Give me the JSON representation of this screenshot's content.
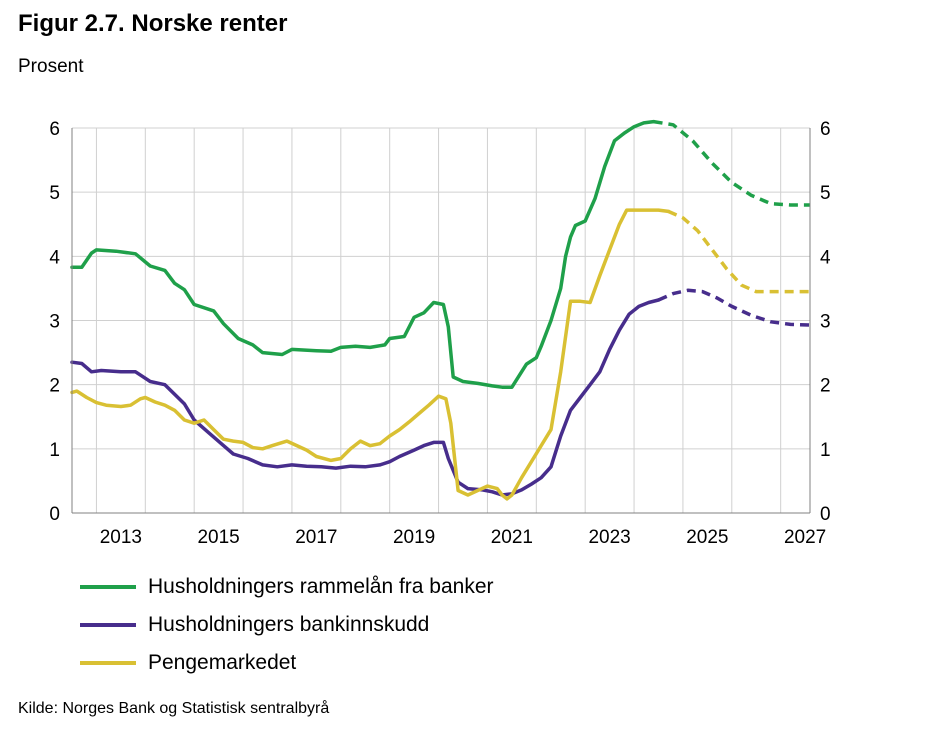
{
  "title": "Figur 2.7. Norske renter",
  "subtitle": "Prosent",
  "source": "Kilde: Norges Bank og Statistisk sentralbyrå",
  "colors": {
    "green": "#1fa04a",
    "purple": "#472d8c",
    "yellow": "#d9c033",
    "grid": "#d0d0d0"
  },
  "legend": [
    {
      "label": "Husholdningers rammelån fra banker",
      "color": "#1fa04a"
    },
    {
      "label": "Husholdningers bankinnskudd",
      "color": "#472d8c"
    },
    {
      "label": "Pengemarkedet",
      "color": "#d9c033"
    }
  ],
  "chart_data": {
    "type": "line",
    "xlim": [
      2012.5,
      2027.6
    ],
    "ylim": [
      0,
      6
    ],
    "x_ticks": [
      "2013",
      "2015",
      "2017",
      "2019",
      "2021",
      "2023",
      "2025",
      "2027"
    ],
    "y_ticks_left": [
      "0",
      "1",
      "2",
      "3",
      "4",
      "5",
      "6"
    ],
    "y_ticks_right": [
      "0",
      "1",
      "2",
      "3",
      "4",
      "5",
      "6"
    ],
    "grid": true,
    "forecast_style": "dashed",
    "series": [
      {
        "name": "Husholdningers rammelån fra banker",
        "color": "#1fa04a",
        "actual": [
          [
            2012.5,
            3.83
          ],
          [
            2012.7,
            3.83
          ],
          [
            2012.9,
            4.05
          ],
          [
            2013.0,
            4.1
          ],
          [
            2013.4,
            4.08
          ],
          [
            2013.8,
            4.04
          ],
          [
            2014.1,
            3.85
          ],
          [
            2014.4,
            3.78
          ],
          [
            2014.6,
            3.58
          ],
          [
            2014.8,
            3.48
          ],
          [
            2015.0,
            3.25
          ],
          [
            2015.4,
            3.15
          ],
          [
            2015.6,
            2.95
          ],
          [
            2015.9,
            2.72
          ],
          [
            2016.2,
            2.62
          ],
          [
            2016.4,
            2.5
          ],
          [
            2016.8,
            2.47
          ],
          [
            2017.0,
            2.55
          ],
          [
            2017.5,
            2.53
          ],
          [
            2017.8,
            2.52
          ],
          [
            2018.0,
            2.58
          ],
          [
            2018.3,
            2.6
          ],
          [
            2018.6,
            2.58
          ],
          [
            2018.9,
            2.62
          ],
          [
            2019.0,
            2.72
          ],
          [
            2019.3,
            2.75
          ],
          [
            2019.5,
            3.05
          ],
          [
            2019.7,
            3.12
          ],
          [
            2019.9,
            3.28
          ],
          [
            2020.1,
            3.25
          ],
          [
            2020.2,
            2.9
          ],
          [
            2020.3,
            2.12
          ],
          [
            2020.5,
            2.05
          ],
          [
            2020.8,
            2.02
          ],
          [
            2021.1,
            1.98
          ],
          [
            2021.3,
            1.96
          ],
          [
            2021.5,
            1.96
          ],
          [
            2021.7,
            2.2
          ],
          [
            2021.8,
            2.32
          ],
          [
            2022.0,
            2.42
          ],
          [
            2022.1,
            2.6
          ],
          [
            2022.3,
            3.0
          ],
          [
            2022.5,
            3.5
          ],
          [
            2022.6,
            4.0
          ],
          [
            2022.7,
            4.3
          ],
          [
            2022.8,
            4.48
          ],
          [
            2023.0,
            4.55
          ],
          [
            2023.2,
            4.9
          ],
          [
            2023.4,
            5.4
          ],
          [
            2023.6,
            5.8
          ],
          [
            2023.8,
            5.92
          ],
          [
            2024.0,
            6.02
          ],
          [
            2024.2,
            6.08
          ],
          [
            2024.4,
            6.1
          ]
        ],
        "forecast": [
          [
            2024.4,
            6.1
          ],
          [
            2024.8,
            6.05
          ],
          [
            2025.2,
            5.8
          ],
          [
            2025.6,
            5.45
          ],
          [
            2026.0,
            5.15
          ],
          [
            2026.4,
            4.95
          ],
          [
            2026.8,
            4.82
          ],
          [
            2027.2,
            4.8
          ],
          [
            2027.6,
            4.8
          ]
        ]
      },
      {
        "name": "Husholdningers bankinnskudd",
        "color": "#472d8c",
        "actual": [
          [
            2012.5,
            2.35
          ],
          [
            2012.7,
            2.33
          ],
          [
            2012.9,
            2.2
          ],
          [
            2013.1,
            2.22
          ],
          [
            2013.5,
            2.2
          ],
          [
            2013.8,
            2.2
          ],
          [
            2014.1,
            2.05
          ],
          [
            2014.4,
            2.0
          ],
          [
            2014.6,
            1.85
          ],
          [
            2014.8,
            1.7
          ],
          [
            2015.0,
            1.45
          ],
          [
            2015.3,
            1.25
          ],
          [
            2015.6,
            1.05
          ],
          [
            2015.8,
            0.92
          ],
          [
            2016.1,
            0.85
          ],
          [
            2016.4,
            0.75
          ],
          [
            2016.7,
            0.72
          ],
          [
            2017.0,
            0.75
          ],
          [
            2017.3,
            0.73
          ],
          [
            2017.6,
            0.72
          ],
          [
            2017.9,
            0.7
          ],
          [
            2018.2,
            0.73
          ],
          [
            2018.5,
            0.72
          ],
          [
            2018.8,
            0.75
          ],
          [
            2019.0,
            0.8
          ],
          [
            2019.2,
            0.88
          ],
          [
            2019.5,
            0.98
          ],
          [
            2019.7,
            1.05
          ],
          [
            2019.9,
            1.1
          ],
          [
            2020.1,
            1.1
          ],
          [
            2020.2,
            0.85
          ],
          [
            2020.4,
            0.48
          ],
          [
            2020.6,
            0.38
          ],
          [
            2020.9,
            0.36
          ],
          [
            2021.1,
            0.33
          ],
          [
            2021.3,
            0.28
          ],
          [
            2021.5,
            0.3
          ],
          [
            2021.7,
            0.36
          ],
          [
            2021.9,
            0.45
          ],
          [
            2022.1,
            0.55
          ],
          [
            2022.3,
            0.72
          ],
          [
            2022.5,
            1.2
          ],
          [
            2022.7,
            1.6
          ],
          [
            2022.9,
            1.8
          ],
          [
            2023.1,
            2.0
          ],
          [
            2023.3,
            2.2
          ],
          [
            2023.5,
            2.55
          ],
          [
            2023.7,
            2.85
          ],
          [
            2023.9,
            3.1
          ],
          [
            2024.1,
            3.22
          ],
          [
            2024.3,
            3.28
          ],
          [
            2024.5,
            3.32
          ]
        ],
        "forecast": [
          [
            2024.5,
            3.32
          ],
          [
            2024.8,
            3.42
          ],
          [
            2025.1,
            3.47
          ],
          [
            2025.4,
            3.45
          ],
          [
            2025.7,
            3.35
          ],
          [
            2026.0,
            3.22
          ],
          [
            2026.4,
            3.08
          ],
          [
            2026.8,
            2.98
          ],
          [
            2027.2,
            2.94
          ],
          [
            2027.6,
            2.93
          ]
        ]
      },
      {
        "name": "Pengemarkedet",
        "color": "#d9c033",
        "actual": [
          [
            2012.5,
            1.88
          ],
          [
            2012.6,
            1.9
          ],
          [
            2012.8,
            1.8
          ],
          [
            2013.0,
            1.72
          ],
          [
            2013.2,
            1.68
          ],
          [
            2013.5,
            1.66
          ],
          [
            2013.7,
            1.68
          ],
          [
            2013.9,
            1.78
          ],
          [
            2014.0,
            1.8
          ],
          [
            2014.2,
            1.73
          ],
          [
            2014.4,
            1.68
          ],
          [
            2014.6,
            1.6
          ],
          [
            2014.8,
            1.45
          ],
          [
            2015.0,
            1.4
          ],
          [
            2015.2,
            1.45
          ],
          [
            2015.4,
            1.3
          ],
          [
            2015.6,
            1.15
          ],
          [
            2015.8,
            1.12
          ],
          [
            2016.0,
            1.1
          ],
          [
            2016.2,
            1.02
          ],
          [
            2016.4,
            1.0
          ],
          [
            2016.6,
            1.05
          ],
          [
            2016.9,
            1.12
          ],
          [
            2017.1,
            1.05
          ],
          [
            2017.3,
            0.98
          ],
          [
            2017.5,
            0.88
          ],
          [
            2017.8,
            0.82
          ],
          [
            2018.0,
            0.85
          ],
          [
            2018.2,
            1.0
          ],
          [
            2018.4,
            1.12
          ],
          [
            2018.6,
            1.05
          ],
          [
            2018.8,
            1.08
          ],
          [
            2019.0,
            1.2
          ],
          [
            2019.2,
            1.3
          ],
          [
            2019.4,
            1.42
          ],
          [
            2019.6,
            1.55
          ],
          [
            2019.8,
            1.68
          ],
          [
            2020.0,
            1.82
          ],
          [
            2020.15,
            1.78
          ],
          [
            2020.25,
            1.4
          ],
          [
            2020.4,
            0.35
          ],
          [
            2020.6,
            0.28
          ],
          [
            2020.8,
            0.35
          ],
          [
            2021.0,
            0.42
          ],
          [
            2021.2,
            0.38
          ],
          [
            2021.3,
            0.28
          ],
          [
            2021.4,
            0.22
          ],
          [
            2021.5,
            0.28
          ],
          [
            2021.7,
            0.55
          ],
          [
            2021.9,
            0.8
          ],
          [
            2022.1,
            1.05
          ],
          [
            2022.3,
            1.3
          ],
          [
            2022.5,
            2.2
          ],
          [
            2022.7,
            3.3
          ],
          [
            2022.9,
            3.3
          ],
          [
            2023.1,
            3.28
          ],
          [
            2023.3,
            3.7
          ],
          [
            2023.5,
            4.1
          ],
          [
            2023.7,
            4.5
          ],
          [
            2023.85,
            4.72
          ],
          [
            2024.0,
            4.72
          ],
          [
            2024.3,
            4.72
          ],
          [
            2024.5,
            4.72
          ],
          [
            2024.7,
            4.7
          ]
        ],
        "forecast": [
          [
            2024.7,
            4.7
          ],
          [
            2025.0,
            4.6
          ],
          [
            2025.3,
            4.4
          ],
          [
            2025.6,
            4.1
          ],
          [
            2025.9,
            3.8
          ],
          [
            2026.2,
            3.55
          ],
          [
            2026.5,
            3.45
          ],
          [
            2026.9,
            3.45
          ],
          [
            2027.3,
            3.45
          ],
          [
            2027.6,
            3.45
          ]
        ]
      }
    ]
  }
}
